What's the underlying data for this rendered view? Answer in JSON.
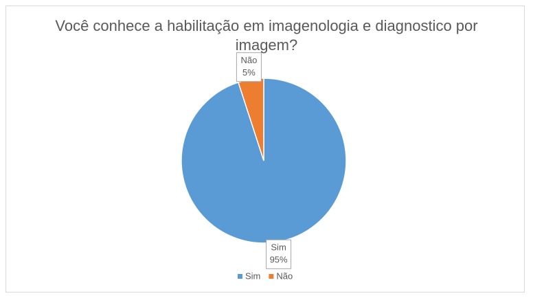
{
  "chart_data": {
    "type": "pie",
    "title": "Você conhece a habilitação em imagenologia e diagnostico por imagem?",
    "categories": [
      "Sim",
      "Não"
    ],
    "values": [
      95,
      5
    ],
    "value_labels": [
      "95%",
      "5%"
    ],
    "colors": [
      "#5b9bd5",
      "#ed7d31"
    ],
    "legend": "bottom"
  }
}
